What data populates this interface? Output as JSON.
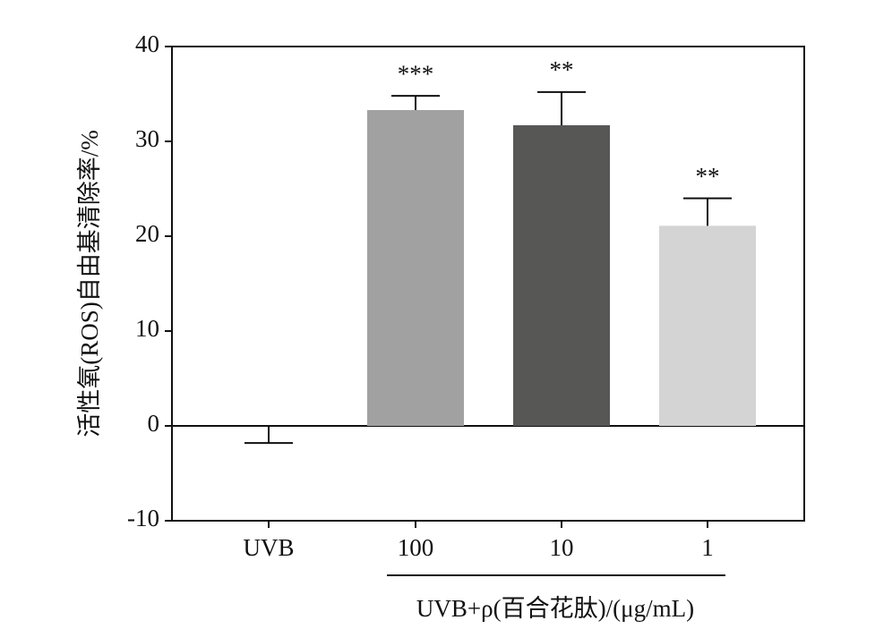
{
  "chart_data": {
    "type": "bar",
    "y_axis_label": "活性氧(ROS)自由基清除率/%",
    "x_axis_label": "UVB+ρ(百合花肽)/(μg/mL)",
    "categories": [
      "UVB",
      "100",
      "10",
      "1"
    ],
    "values": [
      0,
      33.3,
      31.7,
      21.1
    ],
    "errors": [
      1.8,
      1.5,
      3.5,
      2.9
    ],
    "significance": [
      null,
      "***",
      "**",
      "**"
    ],
    "colors": [
      null,
      "#a0a1a0",
      "#575756",
      "#d4d4d4"
    ],
    "ylim": [
      -10,
      40
    ],
    "yticks": [
      -10,
      0,
      10,
      20,
      30,
      40
    ]
  }
}
